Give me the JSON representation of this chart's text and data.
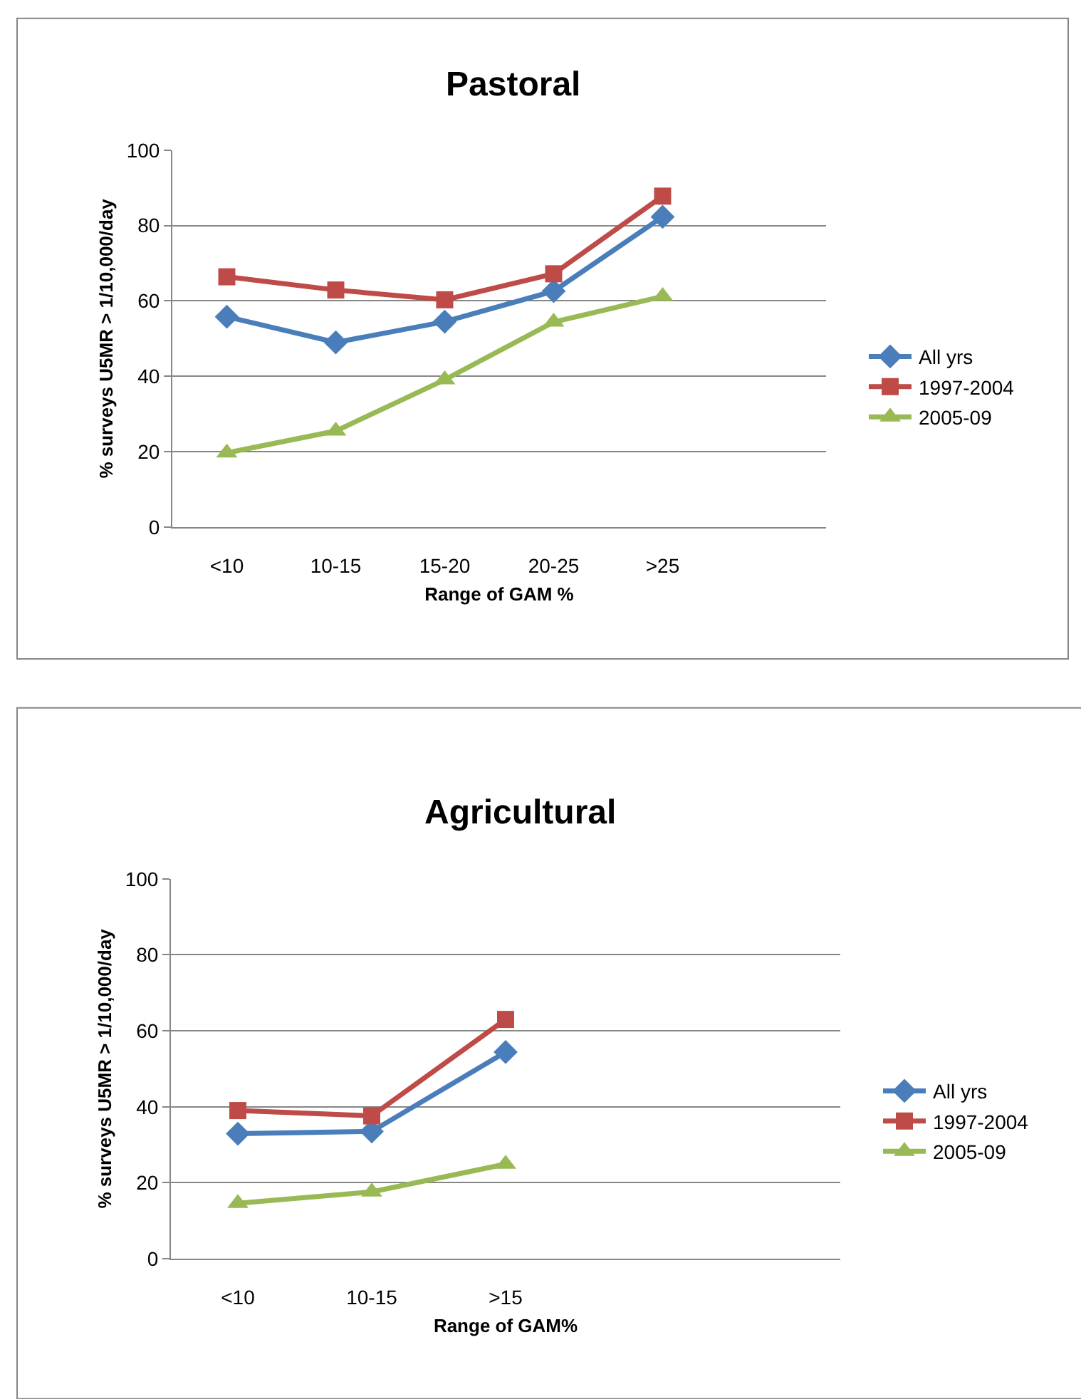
{
  "chart_data": [
    {
      "type": "line",
      "title": "Pastoral",
      "xlabel": "Range of GAM %",
      "ylabel": "% surveys U5MR > 1/10,000/day",
      "categories": [
        "<10",
        "10-15",
        "15-20",
        "20-25",
        ">25",
        null
      ],
      "ylim": [
        0,
        100
      ],
      "yticks": [
        0,
        20,
        40,
        60,
        80,
        100
      ],
      "grid": "y",
      "legend": "right",
      "series": [
        {
          "name": "All yrs",
          "color": "#4a7ebb",
          "marker": "diamond",
          "values": [
            55.8,
            49,
            54.5,
            62.6,
            82.3,
            null
          ]
        },
        {
          "name": "1997-2004",
          "color": "#be4b48",
          "marker": "square",
          "values": [
            66.4,
            62.9,
            60.3,
            67.2,
            87.8,
            null
          ]
        },
        {
          "name": "2005-09",
          "color": "#98b954",
          "marker": "triangle",
          "values": [
            19.7,
            25.5,
            39.1,
            54.4,
            61.2,
            null
          ]
        }
      ]
    },
    {
      "type": "line",
      "title": "Agricultural",
      "xlabel": "Range of GAM%",
      "ylabel": "% surveys U5MR > 1/10,000/day",
      "categories": [
        "<10",
        "10-15",
        ">15",
        null,
        null
      ],
      "ylim": [
        0,
        100
      ],
      "yticks": [
        0,
        20,
        40,
        60,
        80,
        100
      ],
      "grid": "y",
      "legend": "right",
      "series": [
        {
          "name": "All yrs",
          "color": "#4a7ebb",
          "marker": "diamond",
          "values": [
            32.9,
            33.5,
            54.4,
            null,
            null
          ]
        },
        {
          "name": "1997-2004",
          "color": "#be4b48",
          "marker": "square",
          "values": [
            39,
            37.6,
            63,
            null,
            null
          ]
        },
        {
          "name": "2005-09",
          "color": "#98b954",
          "marker": "triangle",
          "values": [
            14.6,
            17.6,
            24.9,
            null,
            null
          ]
        }
      ]
    }
  ]
}
